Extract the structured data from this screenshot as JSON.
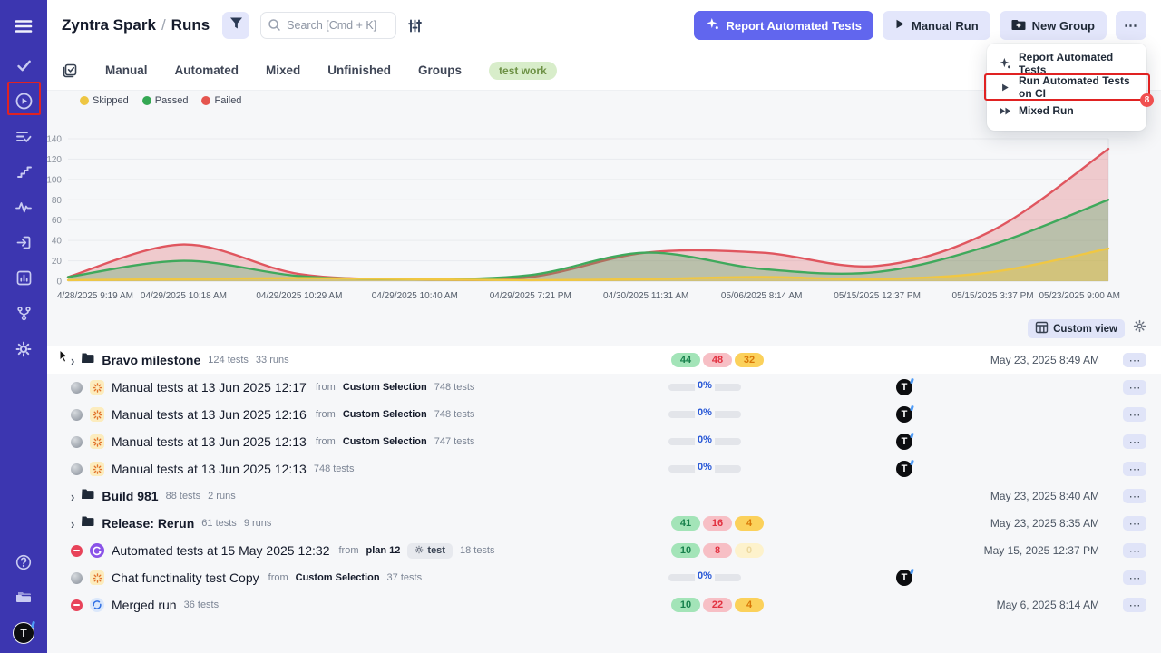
{
  "app": {
    "accent": "#6166ee",
    "sidebar_color": "#3c36b0",
    "annotation_color": "#e02222"
  },
  "sidebar": {
    "top_icon": "menu-icon",
    "icons": [
      "tests-check-icon",
      "runs-play-icon",
      "plans-list-icon",
      "milestones-stairs-icon",
      "pulse-icon",
      "import-icon",
      "analytics-icon",
      "branch-icon",
      "settings-gear-icon"
    ],
    "active_icon": "runs-play-icon",
    "bottom_icons": [
      "help-icon",
      "projects-folders-icon"
    ],
    "logo_letter": "T"
  },
  "header": {
    "breadcrumb": {
      "project": "Zyntra Spark",
      "separator": "/",
      "page": "Runs"
    },
    "filter_icon": "funnel-icon",
    "search": {
      "placeholder": "Search [Cmd + K]",
      "icon": "search-icon"
    },
    "tune_icon": "sliders-icon",
    "buttons": {
      "report": "Report Automated Tests",
      "manual_run": "Manual Run",
      "new_group": "New Group",
      "more": "..."
    }
  },
  "menu": {
    "items": [
      {
        "icon": "spark-icon",
        "label": "Report Automated Tests",
        "annotated": false
      },
      {
        "icon": "play-icon",
        "label": "Run Automated Tests on CI",
        "annotated": true,
        "badge": "8"
      },
      {
        "icon": "double-play-icon",
        "label": "Mixed Run",
        "annotated": false
      }
    ]
  },
  "tabs": {
    "select_icon": "select-all-icon",
    "labels": [
      "Manual",
      "Automated",
      "Mixed",
      "Unfinished",
      "Groups"
    ],
    "tag": "test work"
  },
  "legend": [
    {
      "label": "Skipped",
      "color": "#eec643"
    },
    {
      "label": "Passed",
      "color": "#35a854"
    },
    {
      "label": "Failed",
      "color": "#e5554f"
    }
  ],
  "chart_data": {
    "type": "area",
    "x_labels": [
      "4/28/2025 9:19 AM",
      "04/29/2025 10:18 AM",
      "04/29/2025 10:29 AM",
      "04/29/2025 10:40 AM",
      "04/29/2025 7:21 PM",
      "04/30/2025 11:31 AM",
      "05/06/2025 8:14 AM",
      "05/15/2025 12:37 PM",
      "05/15/2025 3:37 PM",
      "05/23/2025 9:00 AM"
    ],
    "series": [
      {
        "name": "Failed",
        "color": "#e0565f",
        "fill": "rgba(224,86,95,0.28)",
        "values": [
          4,
          36,
          7,
          2,
          4,
          28,
          28,
          15,
          50,
          130
        ]
      },
      {
        "name": "Passed",
        "color": "#3fa95c",
        "fill": "rgba(63,169,92,0.30)",
        "values": [
          4,
          20,
          5,
          2,
          6,
          28,
          12,
          9,
          36,
          80
        ]
      },
      {
        "name": "Skipped",
        "color": "#f0c743",
        "fill": "rgba(240,199,67,0.45)",
        "values": [
          1,
          2,
          3,
          2,
          1,
          2,
          4,
          2,
          9,
          32
        ]
      }
    ],
    "ylim": [
      0,
      140
    ],
    "yticks": [
      0,
      20,
      40,
      60,
      80,
      100,
      120,
      140
    ],
    "grid": true,
    "legend_position": "top-left"
  },
  "custom_view": {
    "label": "Custom view",
    "icon": "table-view-icon",
    "gear_icon": "gear-icon"
  },
  "table": {
    "from_word": "from",
    "more_glyph": "...",
    "rows": [
      {
        "kind": "group",
        "hovered": true,
        "cursor": true,
        "title": "Bravo milestone",
        "tests": "124 tests",
        "runs": "33 runs",
        "badges": {
          "passed": "44",
          "failed": "48",
          "skipped": "32",
          "skipped_muted": false
        },
        "date": "May 23, 2025 8:49 AM"
      },
      {
        "kind": "run",
        "status": "pending",
        "type": "manual",
        "title": "Manual tests at 13 Jun 2025 12:17",
        "from": "Custom Selection",
        "tests": "748 tests",
        "progress": "0%",
        "avatar": "T"
      },
      {
        "kind": "run",
        "status": "pending",
        "type": "manual",
        "title": "Manual tests at 13 Jun 2025 12:16",
        "from": "Custom Selection",
        "tests": "748 tests",
        "progress": "0%",
        "avatar": "T"
      },
      {
        "kind": "run",
        "status": "pending",
        "type": "manual",
        "title": "Manual tests at 13 Jun 2025 12:13",
        "from": "Custom Selection",
        "tests": "747 tests",
        "progress": "0%",
        "avatar": "T"
      },
      {
        "kind": "run",
        "status": "pending",
        "type": "manual",
        "title": "Manual tests at 13 Jun 2025 12:13",
        "tests": "748 tests",
        "progress": "0%",
        "avatar": "T"
      },
      {
        "kind": "group",
        "title": "Build 981",
        "tests": "88 tests",
        "runs": "2 runs",
        "date": "May 23, 2025 8:40 AM"
      },
      {
        "kind": "group",
        "title": "Release: Rerun",
        "tests": "61 tests",
        "runs": "9 runs",
        "badges": {
          "passed": "41",
          "failed": "16",
          "skipped": "4",
          "skipped_muted": false
        },
        "date": "May 23, 2025 8:35 AM"
      },
      {
        "kind": "run",
        "status": "failed",
        "type": "automated",
        "title": "Automated tests at 15 May 2025 12:32",
        "from": "plan 12",
        "tag": "test",
        "tests": "18 tests",
        "badges": {
          "passed": "10",
          "failed": "8",
          "skipped": "0",
          "skipped_muted": true
        },
        "date": "May 15, 2025 12:37 PM"
      },
      {
        "kind": "run",
        "status": "pending",
        "type": "manual",
        "title": "Chat functinality test Copy",
        "from": "Custom Selection",
        "tests": "37 tests",
        "progress": "0%",
        "avatar": "T"
      },
      {
        "kind": "run",
        "status": "failed",
        "type": "merged",
        "title": "Merged run",
        "tests": "36 tests",
        "badges": {
          "passed": "10",
          "failed": "22",
          "skipped": "4",
          "skipped_muted": false
        },
        "date": "May 6, 2025 8:14 AM"
      }
    ]
  }
}
